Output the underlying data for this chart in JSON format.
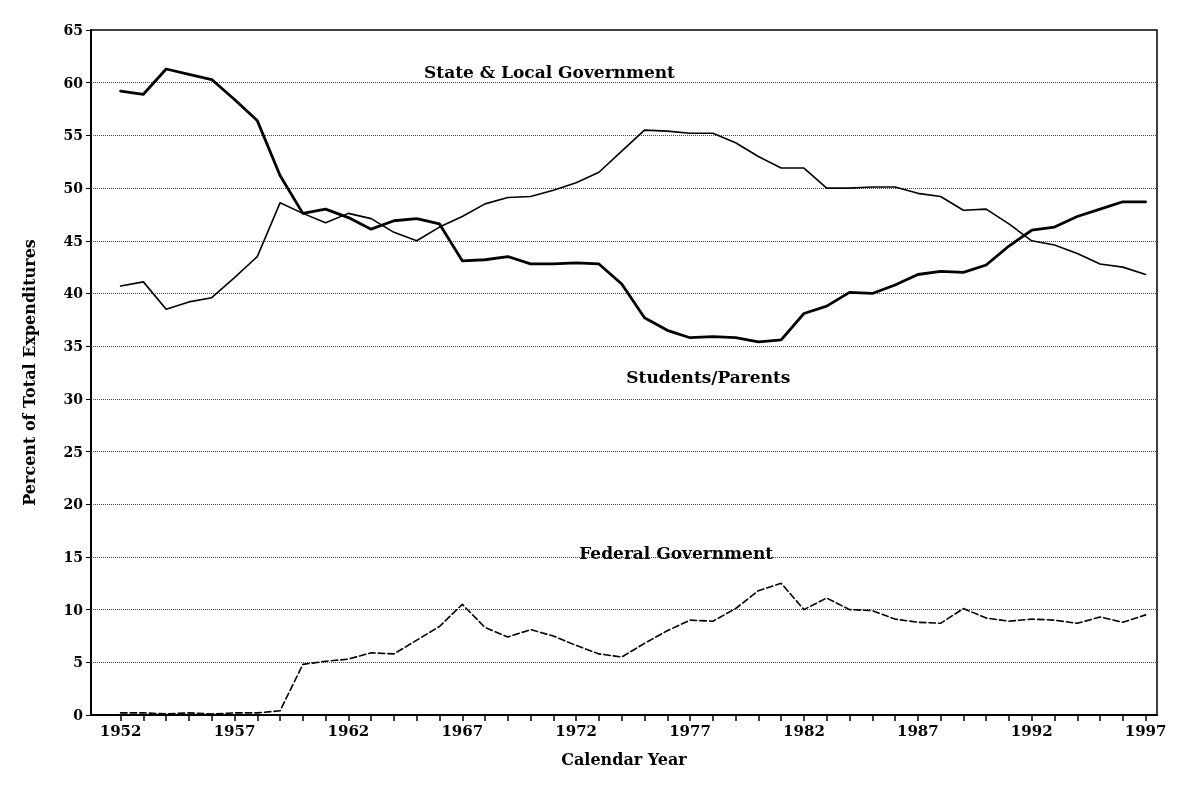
{
  "chart_data": {
    "type": "line",
    "xlabel": "Calendar Year",
    "ylabel": "Percent of Total Expenditures",
    "x": [
      1952,
      1953,
      1954,
      1955,
      1956,
      1957,
      1958,
      1959,
      1960,
      1961,
      1962,
      1963,
      1964,
      1965,
      1966,
      1967,
      1968,
      1969,
      1970,
      1971,
      1972,
      1973,
      1974,
      1975,
      1976,
      1977,
      1978,
      1979,
      1980,
      1981,
      1982,
      1983,
      1984,
      1985,
      1986,
      1987,
      1988,
      1989,
      1990,
      1991,
      1992,
      1993,
      1994,
      1995,
      1996,
      1997
    ],
    "series": [
      {
        "name": "State & Local Government",
        "color": "#000000",
        "line_style": "solid",
        "values": [
          40.7,
          41.1,
          38.5,
          39.2,
          39.6,
          41.5,
          43.5,
          48.6,
          47.6,
          46.7,
          47.6,
          47.1,
          45.8,
          45.0,
          46.3,
          47.3,
          48.5,
          49.1,
          49.2,
          49.8,
          50.5,
          51.5,
          53.5,
          55.5,
          55.4,
          55.2,
          55.2,
          54.3,
          53.0,
          51.9,
          51.9,
          50.0,
          50.0,
          50.1,
          50.1,
          49.5,
          49.2,
          47.9,
          48.0,
          46.6,
          45.0,
          44.6,
          43.8,
          42.8,
          42.5,
          41.8
        ]
      },
      {
        "name": "Students/Parents",
        "color": "#000000",
        "line_style": "solid",
        "values": [
          59.2,
          58.9,
          61.3,
          60.8,
          60.3,
          58.4,
          56.4,
          51.2,
          47.6,
          48.0,
          47.2,
          46.1,
          46.9,
          47.1,
          46.6,
          43.1,
          43.2,
          43.5,
          42.8,
          42.8,
          42.9,
          42.8,
          40.9,
          37.7,
          36.5,
          35.8,
          35.9,
          35.8,
          35.4,
          35.6,
          38.1,
          38.8,
          40.1,
          40.0,
          40.8,
          41.8,
          42.1,
          42.0,
          42.7,
          44.5,
          46.0,
          46.3,
          47.3,
          48.0,
          48.7,
          48.7
        ]
      },
      {
        "name": "Federal Government",
        "color": "#000000",
        "line_style": "dashed",
        "values": [
          0.2,
          0.2,
          0.1,
          0.2,
          0.1,
          0.2,
          0.2,
          0.4,
          4.8,
          5.1,
          5.3,
          5.9,
          5.8,
          7.1,
          8.4,
          10.5,
          8.3,
          7.4,
          8.1,
          7.5,
          6.6,
          5.8,
          5.5,
          6.8,
          8.0,
          9.0,
          8.9,
          10.1,
          11.8,
          12.5,
          10.0,
          11.1,
          10.0,
          9.9,
          9.1,
          8.8,
          8.7,
          10.1,
          9.2,
          8.9,
          9.1,
          9.0,
          8.7,
          9.3,
          8.8,
          9.5
        ]
      }
    ],
    "xlim": [
      1950.7,
      1997.5
    ],
    "xticks": [
      1952,
      {
        "value": 1953,
        "label": null
      },
      {
        "value": 1954,
        "label": null
      },
      {
        "value": 1955,
        "label": null
      },
      {
        "value": 1956,
        "label": null
      },
      1957,
      {
        "value": 1958,
        "label": null
      },
      {
        "value": 1959,
        "label": null
      },
      {
        "value": 1960,
        "label": null
      },
      {
        "value": 1961,
        "label": null
      },
      1962,
      {
        "value": 1963,
        "label": null
      },
      {
        "value": 1964,
        "label": null
      },
      {
        "value": 1965,
        "label": null
      },
      {
        "value": 1966,
        "label": null
      },
      1967,
      {
        "value": 1968,
        "label": null
      },
      {
        "value": 1969,
        "label": null
      },
      {
        "value": 1970,
        "label": null
      },
      {
        "value": 1971,
        "label": null
      },
      1972,
      {
        "value": 1973,
        "label": null
      },
      {
        "value": 1974,
        "label": null
      },
      {
        "value": 1975,
        "label": null
      },
      {
        "value": 1976,
        "label": null
      },
      1977,
      {
        "value": 1978,
        "label": null
      },
      {
        "value": 1979,
        "label": null
      },
      {
        "value": 1980,
        "label": null
      },
      {
        "value": 1981,
        "label": null
      },
      1982,
      {
        "value": 1983,
        "label": null
      },
      {
        "value": 1984,
        "label": null
      },
      {
        "value": 1985,
        "label": null
      },
      {
        "value": 1986,
        "label": null
      },
      1987,
      {
        "value": 1988,
        "label": null
      },
      {
        "value": 1989,
        "label": null
      },
      {
        "value": 1990,
        "label": null
      },
      {
        "value": 1991,
        "label": null
      },
      1992,
      {
        "value": 1993,
        "label": null
      },
      {
        "value": 1994,
        "label": null
      },
      {
        "value": 1995,
        "label": null
      },
      {
        "value": 1996,
        "label": null
      },
      1997
    ],
    "ylim": [
      0,
      65
    ],
    "yticks": [
      0,
      5,
      10,
      15,
      20,
      25,
      30,
      35,
      40,
      45,
      50,
      55,
      60,
      65
    ],
    "grid": "y",
    "marker": "none",
    "legend": false
  }
}
